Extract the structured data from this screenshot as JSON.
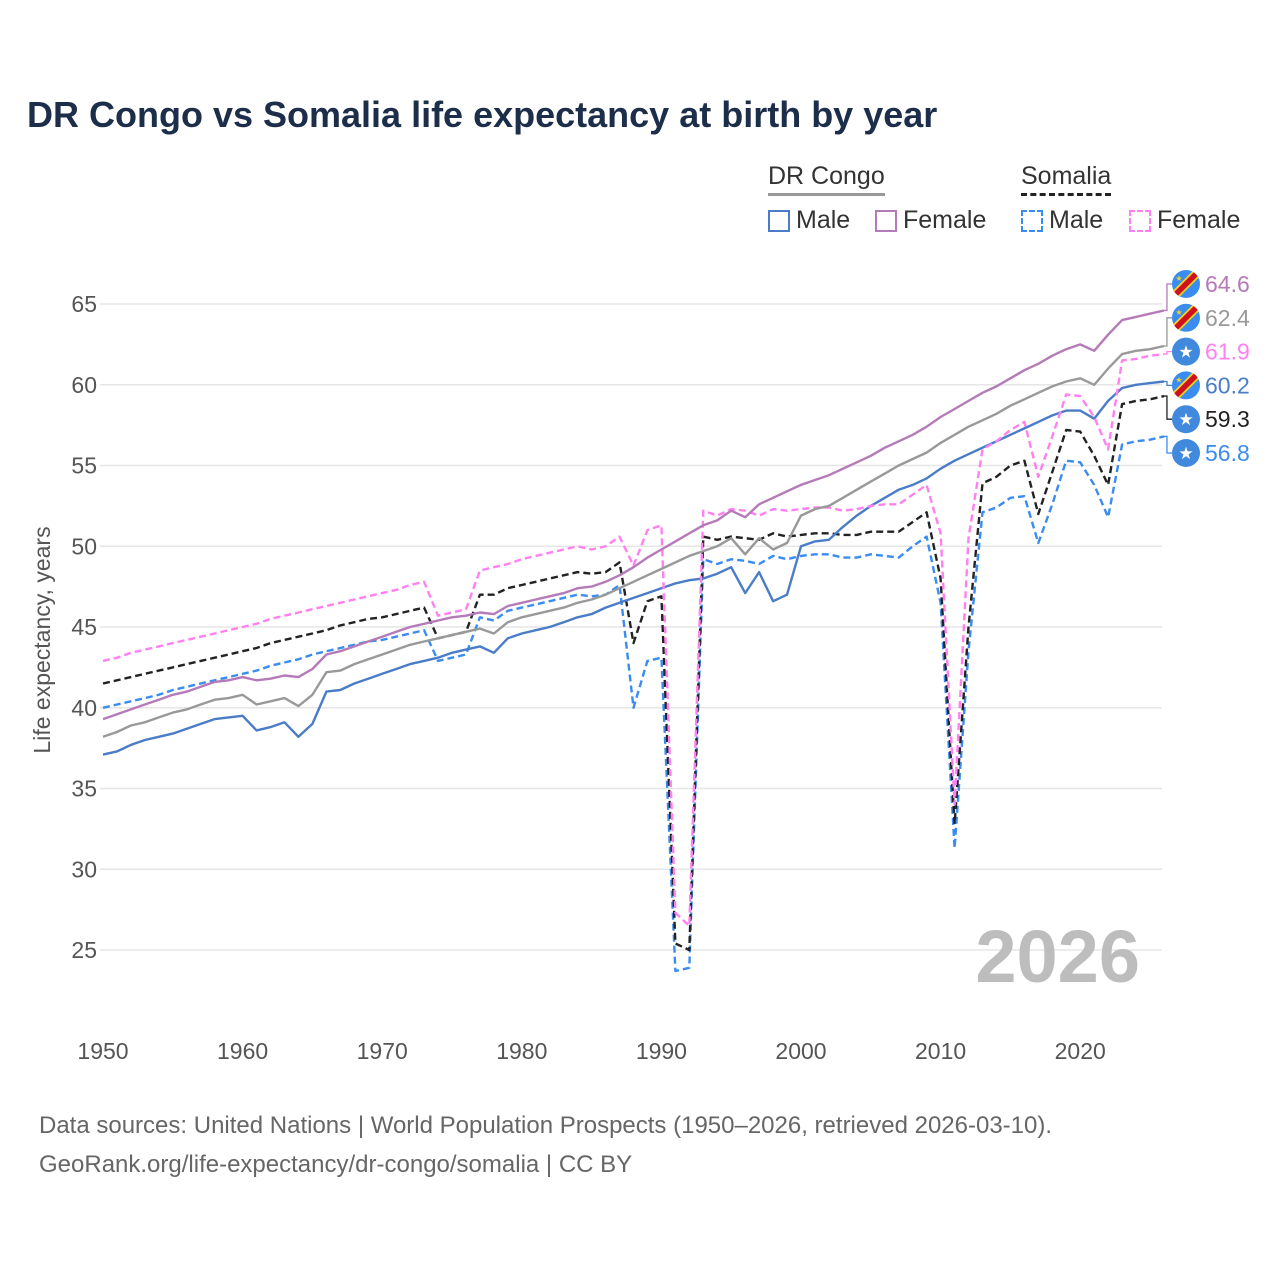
{
  "title": "DR Congo vs Somalia life expectancy at birth by year",
  "legend": {
    "groups": [
      {
        "label": "DR Congo",
        "color": "#999999",
        "dashed": false
      },
      {
        "label": "Somalia",
        "color": "#222222",
        "dashed": true
      }
    ],
    "items": [
      {
        "label": "Male",
        "color": "#4a7cc7",
        "dashed": false
      },
      {
        "label": "Female",
        "color": "#b57ab8",
        "dashed": false
      },
      {
        "label": "Male",
        "color": "#3a8cf0",
        "dashed": true
      },
      {
        "label": "Female",
        "color": "#ff80f0",
        "dashed": true
      }
    ]
  },
  "source": {
    "line1": "Data sources: United Nations | World Population Prospects (1950–2026, retrieved 2026-03-10).",
    "line2": "GeoRank.org/life-expectancy/dr-congo/somalia | CC BY"
  },
  "chart_data": {
    "type": "line",
    "title": "DR Congo vs Somalia life expectancy at birth by year",
    "xlabel": "",
    "ylabel": "Life expectancy, years",
    "xlim": [
      1950,
      2026
    ],
    "ylim": [
      22,
      67
    ],
    "xticks": [
      "1950",
      "1960",
      "1970",
      "1980",
      "1990",
      "2000",
      "2010",
      "2020"
    ],
    "yticks": [
      "25",
      "30",
      "35",
      "40",
      "45",
      "50",
      "55",
      "60",
      "65"
    ],
    "watermark": "2026",
    "grid": true,
    "legend_position": "top-right",
    "x_start": 1950,
    "series": [
      {
        "name": "DR Congo Female",
        "color": "#b57ab8",
        "dashed": false,
        "flag": "dr-congo",
        "end_label": "64.6",
        "values": [
          39.3,
          39.6,
          39.9,
          40.2,
          40.5,
          40.8,
          41.0,
          41.3,
          41.6,
          41.7,
          41.9,
          41.7,
          41.8,
          42.0,
          41.9,
          42.4,
          43.3,
          43.5,
          43.8,
          44.1,
          44.4,
          44.7,
          45.0,
          45.2,
          45.4,
          45.6,
          45.7,
          45.9,
          45.8,
          46.3,
          46.5,
          46.7,
          46.9,
          47.1,
          47.4,
          47.5,
          47.8,
          48.2,
          48.7,
          49.3,
          49.8,
          50.3,
          50.8,
          51.3,
          51.6,
          52.2,
          51.8,
          52.6,
          53.0,
          53.4,
          53.8,
          54.1,
          54.4,
          54.8,
          55.2,
          55.6,
          56.1,
          56.5,
          56.9,
          57.4,
          58.0,
          58.5,
          59.0,
          59.5,
          59.9,
          60.4,
          60.9,
          61.3,
          61.8,
          62.2,
          62.5,
          62.1,
          63.1,
          64.0,
          64.2,
          64.4,
          64.6
        ]
      },
      {
        "name": "DR Congo",
        "color": "#999999",
        "dashed": false,
        "flag": "dr-congo",
        "end_label": "62.4",
        "values": [
          38.2,
          38.5,
          38.9,
          39.1,
          39.4,
          39.7,
          39.9,
          40.2,
          40.5,
          40.6,
          40.8,
          40.2,
          40.4,
          40.6,
          40.1,
          40.8,
          42.2,
          42.3,
          42.7,
          43.0,
          43.3,
          43.6,
          43.9,
          44.1,
          44.3,
          44.5,
          44.7,
          44.9,
          44.6,
          45.3,
          45.6,
          45.8,
          46.0,
          46.2,
          46.5,
          46.7,
          47.0,
          47.4,
          47.8,
          48.2,
          48.6,
          49.0,
          49.4,
          49.7,
          50.0,
          50.5,
          49.5,
          50.5,
          49.8,
          50.2,
          51.9,
          52.3,
          52.5,
          53.0,
          53.5,
          54.0,
          54.5,
          55.0,
          55.4,
          55.8,
          56.4,
          56.9,
          57.4,
          57.8,
          58.2,
          58.7,
          59.1,
          59.5,
          59.9,
          60.2,
          60.4,
          60.0,
          61.0,
          61.9,
          62.1,
          62.2,
          62.4
        ]
      },
      {
        "name": "Somalia Female",
        "color": "#ff80f0",
        "dashed": true,
        "flag": "somalia",
        "end_label": "61.9",
        "values": [
          42.9,
          43.1,
          43.4,
          43.6,
          43.8,
          44.0,
          44.2,
          44.4,
          44.6,
          44.8,
          45.0,
          45.2,
          45.5,
          45.7,
          45.9,
          46.1,
          46.3,
          46.5,
          46.7,
          46.9,
          47.1,
          47.3,
          47.6,
          47.8,
          45.7,
          45.9,
          46.1,
          48.5,
          48.7,
          48.9,
          49.2,
          49.4,
          49.6,
          49.8,
          50.0,
          49.8,
          50.0,
          50.6,
          48.8,
          51.0,
          51.3,
          27.3,
          26.5,
          52.2,
          51.9,
          52.3,
          52.2,
          51.9,
          52.3,
          52.2,
          52.3,
          52.4,
          52.4,
          52.2,
          52.3,
          52.5,
          52.6,
          52.6,
          53.2,
          53.8,
          50.8,
          34.0,
          50.5,
          56.0,
          56.5,
          57.2,
          57.7,
          54.3,
          56.8,
          59.4,
          59.3,
          58.0,
          56.0,
          61.5,
          61.6,
          61.8,
          61.9
        ]
      },
      {
        "name": "DR Congo Male",
        "color": "#4a7cc7",
        "dashed": false,
        "flag": "dr-congo",
        "end_label": "60.2",
        "values": [
          37.1,
          37.3,
          37.7,
          38.0,
          38.2,
          38.4,
          38.7,
          39.0,
          39.3,
          39.4,
          39.5,
          38.6,
          38.8,
          39.1,
          38.2,
          39.0,
          41.0,
          41.1,
          41.5,
          41.8,
          42.1,
          42.4,
          42.7,
          42.9,
          43.1,
          43.4,
          43.6,
          43.8,
          43.4,
          44.3,
          44.6,
          44.8,
          45.0,
          45.3,
          45.6,
          45.8,
          46.2,
          46.5,
          46.8,
          47.1,
          47.4,
          47.7,
          47.9,
          48.0,
          48.3,
          48.7,
          47.1,
          48.4,
          46.6,
          47.0,
          50.0,
          50.3,
          50.4,
          51.2,
          51.9,
          52.5,
          53.0,
          53.5,
          53.8,
          54.2,
          54.8,
          55.3,
          55.7,
          56.1,
          56.5,
          56.9,
          57.3,
          57.7,
          58.1,
          58.4,
          58.4,
          57.9,
          59.0,
          59.8,
          60.0,
          60.1,
          60.2
        ]
      },
      {
        "name": "Somalia",
        "color": "#222222",
        "dashed": true,
        "flag": "somalia",
        "end_label": "59.3",
        "values": [
          41.5,
          41.7,
          41.9,
          42.1,
          42.3,
          42.5,
          42.7,
          42.9,
          43.1,
          43.3,
          43.5,
          43.7,
          44.0,
          44.2,
          44.4,
          44.6,
          44.8,
          45.1,
          45.3,
          45.5,
          45.6,
          45.8,
          46.0,
          46.2,
          44.3,
          44.5,
          44.7,
          47.0,
          47.0,
          47.4,
          47.6,
          47.8,
          48.0,
          48.2,
          48.4,
          48.3,
          48.4,
          49.0,
          44.0,
          46.6,
          46.9,
          25.4,
          25.0,
          50.6,
          50.4,
          50.6,
          50.5,
          50.4,
          50.8,
          50.6,
          50.7,
          50.8,
          50.8,
          50.7,
          50.7,
          50.9,
          50.9,
          50.9,
          51.5,
          52.1,
          48.0,
          32.8,
          45.0,
          53.9,
          54.3,
          55.0,
          55.3,
          52.0,
          54.6,
          57.2,
          57.1,
          55.6,
          53.8,
          58.8,
          59.0,
          59.1,
          59.3
        ]
      },
      {
        "name": "Somalia Male",
        "color": "#3a8cf0",
        "dashed": true,
        "flag": "somalia",
        "end_label": "56.8",
        "values": [
          40.0,
          40.2,
          40.4,
          40.6,
          40.8,
          41.1,
          41.3,
          41.5,
          41.7,
          41.9,
          42.1,
          42.3,
          42.6,
          42.8,
          43.0,
          43.3,
          43.5,
          43.7,
          43.9,
          44.1,
          44.2,
          44.4,
          44.6,
          44.8,
          42.9,
          43.1,
          43.3,
          45.6,
          45.4,
          46.0,
          46.2,
          46.4,
          46.6,
          46.8,
          47.0,
          46.9,
          47.0,
          47.6,
          40.0,
          42.9,
          43.1,
          23.7,
          23.9,
          49.2,
          48.9,
          49.2,
          49.1,
          48.9,
          49.4,
          49.2,
          49.4,
          49.5,
          49.5,
          49.3,
          49.3,
          49.5,
          49.4,
          49.3,
          50.0,
          50.6,
          46.5,
          31.3,
          43.5,
          52.1,
          52.4,
          53.0,
          53.1,
          50.2,
          52.6,
          55.3,
          55.2,
          53.8,
          51.8,
          56.3,
          56.5,
          56.6,
          56.8
        ]
      }
    ]
  }
}
